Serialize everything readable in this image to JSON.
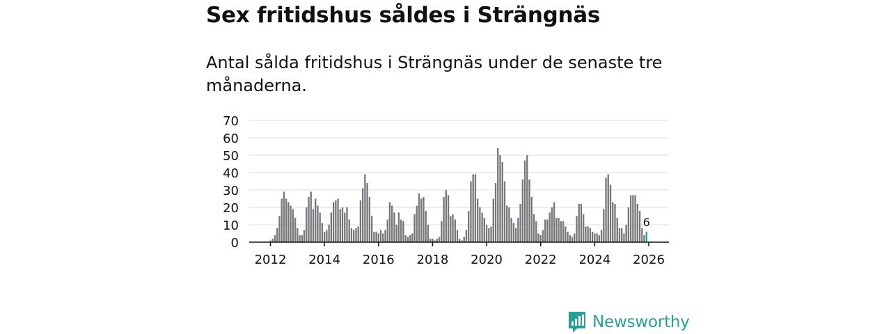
{
  "title": "Sex fritidshus såldes i Strängnäs",
  "subtitle": "Antal sålda fritidshus i Strängnäs under de senaste tre månaderna.",
  "brand": {
    "name": "Newsworthy",
    "icon": "newsworthy-logo-icon",
    "color": "#2a9d96"
  },
  "colors": {
    "bar": "#77767b",
    "highlight": "#2a9d96",
    "grid": "#dddddd",
    "axis": "#111111"
  },
  "chart_data": {
    "type": "bar",
    "title": "Sex fritidshus såldes i Strängnäs",
    "xlabel": "",
    "ylabel": "",
    "ylim": [
      0,
      70
    ],
    "yticks": [
      0,
      10,
      20,
      30,
      40,
      50,
      60,
      70
    ],
    "xticks": [
      "2012",
      "2014",
      "2016",
      "2018",
      "2020",
      "2022",
      "2024",
      "2026"
    ],
    "start": "2012-01",
    "end": "2025-12",
    "highlight_label": "6",
    "grid": true,
    "values": [
      1,
      2,
      4,
      8,
      15,
      25,
      29,
      25,
      23,
      21,
      19,
      14,
      8,
      4,
      4,
      7,
      20,
      26,
      29,
      19,
      25,
      21,
      17,
      11,
      6,
      7,
      10,
      17,
      23,
      24,
      25,
      19,
      20,
      17,
      20,
      13,
      8,
      7,
      8,
      9,
      24,
      31,
      39,
      34,
      26,
      15,
      6,
      6,
      5,
      7,
      5,
      7,
      13,
      23,
      21,
      17,
      10,
      17,
      13,
      12,
      4,
      3,
      4,
      5,
      16,
      21,
      28,
      25,
      26,
      18,
      10,
      2,
      2,
      1,
      2,
      3,
      12,
      26,
      30,
      27,
      15,
      16,
      13,
      7,
      2,
      1,
      3,
      7,
      18,
      35,
      39,
      39,
      25,
      20,
      17,
      14,
      10,
      8,
      9,
      25,
      34,
      54,
      50,
      46,
      35,
      21,
      20,
      14,
      11,
      8,
      14,
      22,
      36,
      47,
      50,
      36,
      26,
      16,
      12,
      5,
      4,
      7,
      13,
      13,
      17,
      20,
      23,
      14,
      14,
      12,
      12,
      9,
      6,
      4,
      3,
      5,
      15,
      22,
      22,
      16,
      9,
      9,
      8,
      6,
      5,
      5,
      4,
      7,
      19,
      37,
      39,
      33,
      23,
      22,
      14,
      8,
      8,
      5,
      10,
      20,
      27,
      27,
      27,
      22,
      18,
      8,
      4,
      6
    ]
  }
}
